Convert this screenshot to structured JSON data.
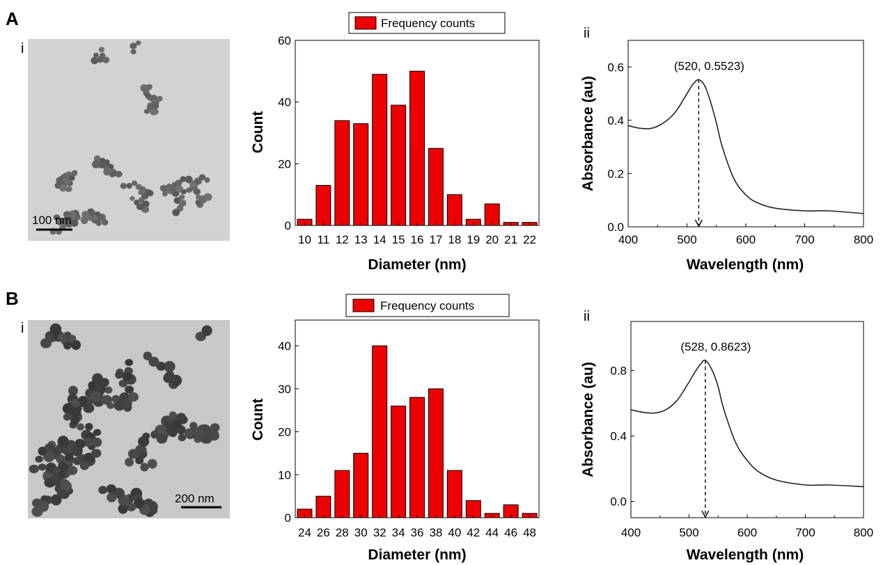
{
  "panels": [
    {
      "letter": "A",
      "tem": {
        "label": "i",
        "scale_bar": "100 nm",
        "scale_color": "#000000",
        "particle_count": 150,
        "seed": 7,
        "background": "#d2d2d2"
      },
      "histogram": {
        "type": "bar",
        "categories": [
          "10",
          "11",
          "12",
          "13",
          "14",
          "15",
          "16",
          "17",
          "18",
          "19",
          "20",
          "21",
          "22"
        ],
        "values": [
          2,
          13,
          34,
          33,
          49,
          39,
          50,
          25,
          10,
          2,
          7,
          1,
          1
        ],
        "xlabel": "Diameter (nm)",
        "ylabel": "Count",
        "ylim": [
          0,
          60
        ],
        "yticks": [
          0,
          20,
          40,
          60
        ],
        "legend": "Frequency counts",
        "bar_color": "#ee0000",
        "legend_placement": "top-center"
      },
      "spectrum": {
        "type": "line",
        "label": "ii",
        "xlabel": "Wavelength (nm)",
        "ylabel": "Absorbance (au)",
        "xlim": [
          400,
          800
        ],
        "ylim": [
          0,
          0.7
        ],
        "xticks": [
          400,
          500,
          600,
          700,
          800
        ],
        "yticks": [
          "0.0",
          "0.2",
          "0.4",
          "0.6"
        ],
        "x": [
          400,
          420,
          440,
          460,
          480,
          500,
          510,
          520,
          530,
          540,
          550,
          560,
          580,
          600,
          620,
          650,
          700,
          740,
          800
        ],
        "y": [
          0.38,
          0.37,
          0.37,
          0.39,
          0.43,
          0.5,
          0.535,
          0.5523,
          0.53,
          0.47,
          0.39,
          0.3,
          0.18,
          0.12,
          0.09,
          0.07,
          0.06,
          0.06,
          0.05
        ],
        "peak": {
          "x": 520,
          "y": 0.5523,
          "label": "(520, 0.5523)"
        }
      }
    },
    {
      "letter": "B",
      "tem": {
        "label": "i",
        "scale_bar": "200 nm",
        "scale_color": "#000000",
        "particle_count": 210,
        "seed": 23,
        "background": "#c8c8c8"
      },
      "histogram": {
        "type": "bar",
        "categories": [
          "24",
          "26",
          "28",
          "30",
          "32",
          "34",
          "36",
          "38",
          "40",
          "42",
          "44",
          "46",
          "48"
        ],
        "values": [
          2,
          5,
          11,
          15,
          40,
          26,
          28,
          30,
          11,
          4,
          1,
          3,
          1
        ],
        "xlabel": "Diameter (nm)",
        "ylabel": "Count",
        "ylim": [
          0,
          46
        ],
        "yticks": [
          0,
          10,
          20,
          30,
          40
        ],
        "legend": "Frequency counts",
        "bar_color": "#ee0000",
        "legend_placement": "top-center"
      },
      "spectrum": {
        "type": "line",
        "label": "ii",
        "xlabel": "Wavelength (nm)",
        "ylabel": "Absorbance (au)",
        "xlim": [
          400,
          800
        ],
        "ylim": [
          -0.1,
          1.1
        ],
        "xticks": [
          400,
          500,
          600,
          700,
          800
        ],
        "yticks": [
          "0.0",
          "0.4",
          "0.8"
        ],
        "yticks_values": [
          0,
          0.4,
          0.8
        ],
        "x": [
          400,
          420,
          440,
          460,
          480,
          500,
          510,
          520,
          528,
          540,
          550,
          560,
          580,
          600,
          620,
          650,
          700,
          740,
          800
        ],
        "y": [
          0.56,
          0.545,
          0.54,
          0.56,
          0.62,
          0.73,
          0.79,
          0.84,
          0.8623,
          0.8,
          0.7,
          0.56,
          0.36,
          0.25,
          0.18,
          0.13,
          0.1,
          0.1,
          0.09
        ],
        "peak": {
          "x": 528,
          "y": 0.8623,
          "label": "(528, 0.8623)"
        }
      }
    }
  ]
}
